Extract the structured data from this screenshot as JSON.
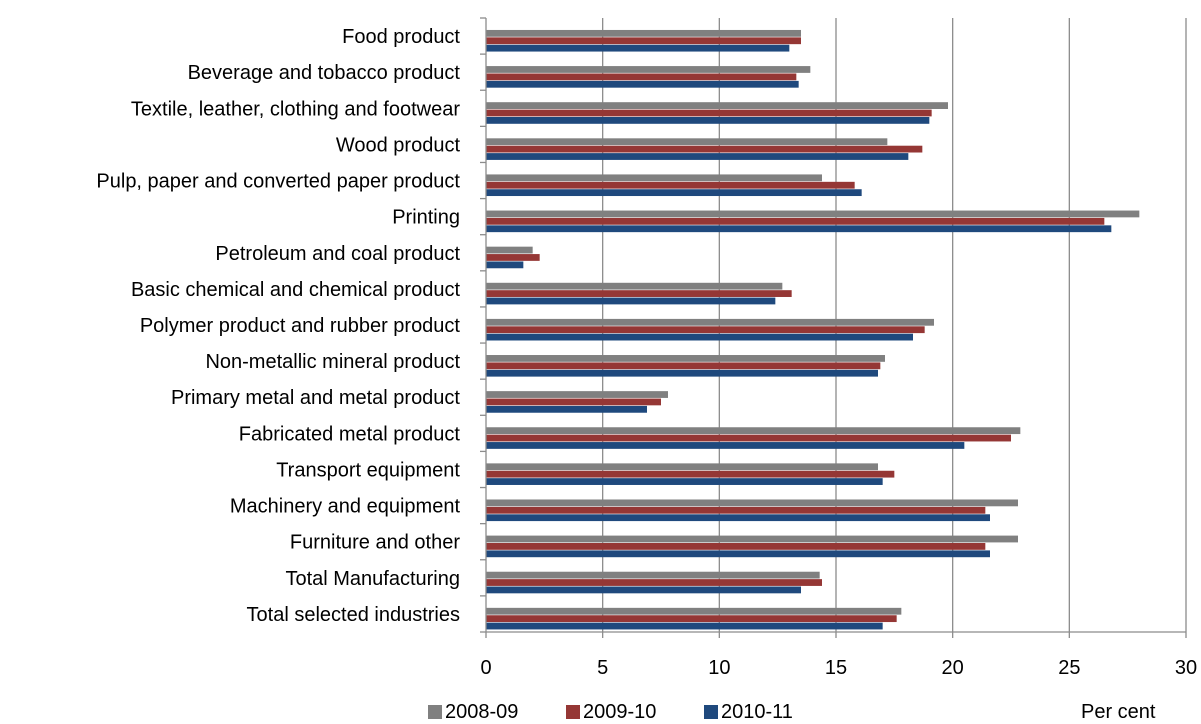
{
  "chart_data": {
    "type": "bar",
    "orientation": "horizontal",
    "categories": [
      "Food product",
      "Beverage and tobacco product",
      "Textile, leather, clothing and footwear",
      "Wood product",
      "Pulp, paper and converted paper product",
      "Printing",
      "Petroleum and coal product",
      "Basic chemical and chemical product",
      "Polymer product and rubber product",
      "Non-metallic mineral product",
      "Primary metal and metal product",
      "Fabricated metal product",
      "Transport equipment",
      "Machinery and equipment",
      "Furniture and other",
      "Total Manufacturing",
      "Total selected industries"
    ],
    "series": [
      {
        "name": "2008-09",
        "color": "#808080",
        "values": [
          13.5,
          13.9,
          19.8,
          17.2,
          14.4,
          28.0,
          2.0,
          12.7,
          19.2,
          17.1,
          7.8,
          22.9,
          16.8,
          22.8,
          22.8,
          14.3,
          17.8
        ]
      },
      {
        "name": "2009-10",
        "color": "#953735",
        "values": [
          13.5,
          13.3,
          19.1,
          18.7,
          15.8,
          26.5,
          2.3,
          13.1,
          18.8,
          16.9,
          7.5,
          22.5,
          17.5,
          21.4,
          21.4,
          14.4,
          17.6
        ]
      },
      {
        "name": "2010-11",
        "color": "#1F497D",
        "values": [
          13.0,
          13.4,
          19.0,
          18.1,
          16.1,
          26.8,
          1.6,
          12.4,
          18.3,
          16.8,
          6.9,
          20.5,
          17.0,
          21.6,
          21.6,
          13.5,
          17.0
        ]
      }
    ],
    "xlim": [
      0,
      30
    ],
    "xticks": [
      "0",
      "5",
      "10",
      "15",
      "20",
      "25",
      "30"
    ],
    "xlabel": "Per cent",
    "title": "",
    "grid": "vertical",
    "legend": "bottom"
  }
}
